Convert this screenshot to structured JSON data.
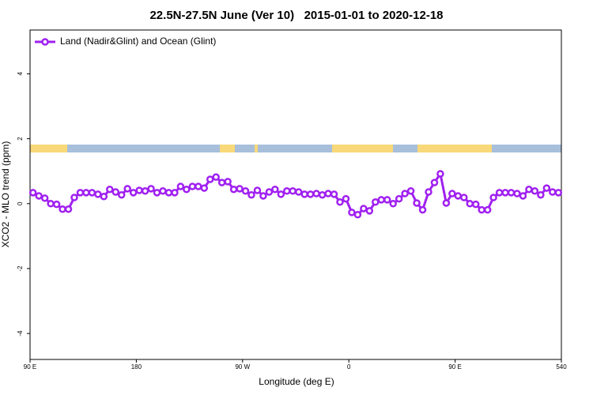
{
  "chart_data": {
    "type": "line",
    "title": "22.5N-27.5N June (Ver 10)   2015-01-01 to 2020-12-18",
    "xlabel": "Longitude (deg E)",
    "ylabel": "XCO2 - MLO trend (ppm)",
    "xlim": [
      90,
      540
    ],
    "ylim": [
      -4.8,
      5.35
    ],
    "xticks": [
      {
        "value": 90,
        "label": "90 E"
      },
      180,
      {
        "value": 270,
        "label": "90 W"
      },
      {
        "value": 360,
        "label": "0"
      },
      {
        "value": 450,
        "label": "90 E"
      },
      540
    ],
    "yticks": [
      -4,
      -2,
      0,
      2,
      4
    ],
    "legend": "top-left",
    "x": [
      92.5,
      97.5,
      102.5,
      107.5,
      112.5,
      117.5,
      122.5,
      127.5,
      132.5,
      137.5,
      142.5,
      147.5,
      152.5,
      157.5,
      162.5,
      167.5,
      172.5,
      177.5,
      182.5,
      187.5,
      192.5,
      197.5,
      202.5,
      207.5,
      212.5,
      217.5,
      222.5,
      227.5,
      232.5,
      237.5,
      242.5,
      247.5,
      252.5,
      257.5,
      262.5,
      267.5,
      272.5,
      277.5,
      282.5,
      287.5,
      292.5,
      297.5,
      302.5,
      307.5,
      312.5,
      317.5,
      322.5,
      327.5,
      332.5,
      337.5,
      342.5,
      347.5,
      352.5,
      357.5,
      362.5,
      367.5,
      372.5,
      377.5,
      382.5,
      387.5,
      392.5,
      397.5,
      402.5,
      407.5,
      412.5,
      417.5,
      422.5,
      427.5,
      432.5,
      437.5,
      442.5,
      447.5,
      452.5,
      457.5,
      462.5,
      467.5,
      472.5,
      477.5,
      482.5,
      487.5,
      492.5,
      497.5,
      502.5,
      507.5,
      512.5,
      517.5,
      522.5,
      527.5,
      532.5,
      537.5
    ],
    "series": [
      {
        "name": "Land (Nadir&Glint) and Ocean (Glint)",
        "color": "#a020f0",
        "values": [
          0.34,
          0.24,
          0.17,
          0.0,
          -0.02,
          -0.17,
          -0.17,
          0.19,
          0.34,
          0.34,
          0.34,
          0.29,
          0.22,
          0.44,
          0.36,
          0.27,
          0.46,
          0.34,
          0.41,
          0.39,
          0.46,
          0.34,
          0.39,
          0.34,
          0.34,
          0.53,
          0.44,
          0.53,
          0.53,
          0.48,
          0.75,
          0.82,
          0.65,
          0.68,
          0.44,
          0.46,
          0.39,
          0.27,
          0.41,
          0.24,
          0.36,
          0.44,
          0.29,
          0.39,
          0.39,
          0.36,
          0.29,
          0.29,
          0.31,
          0.27,
          0.31,
          0.29,
          0.05,
          0.15,
          -0.27,
          -0.34,
          -0.15,
          -0.22,
          0.05,
          0.12,
          0.12,
          0.0,
          0.15,
          0.31,
          0.39,
          0.02,
          -0.19,
          0.36,
          0.65,
          0.92,
          0.02,
          0.31,
          0.24,
          0.19,
          0.0,
          -0.02,
          -0.19,
          -0.19,
          0.19,
          0.34,
          0.34,
          0.34,
          0.31,
          0.24,
          0.44,
          0.39,
          0.27,
          0.48,
          0.36,
          0.34
        ]
      }
    ]
  }
}
